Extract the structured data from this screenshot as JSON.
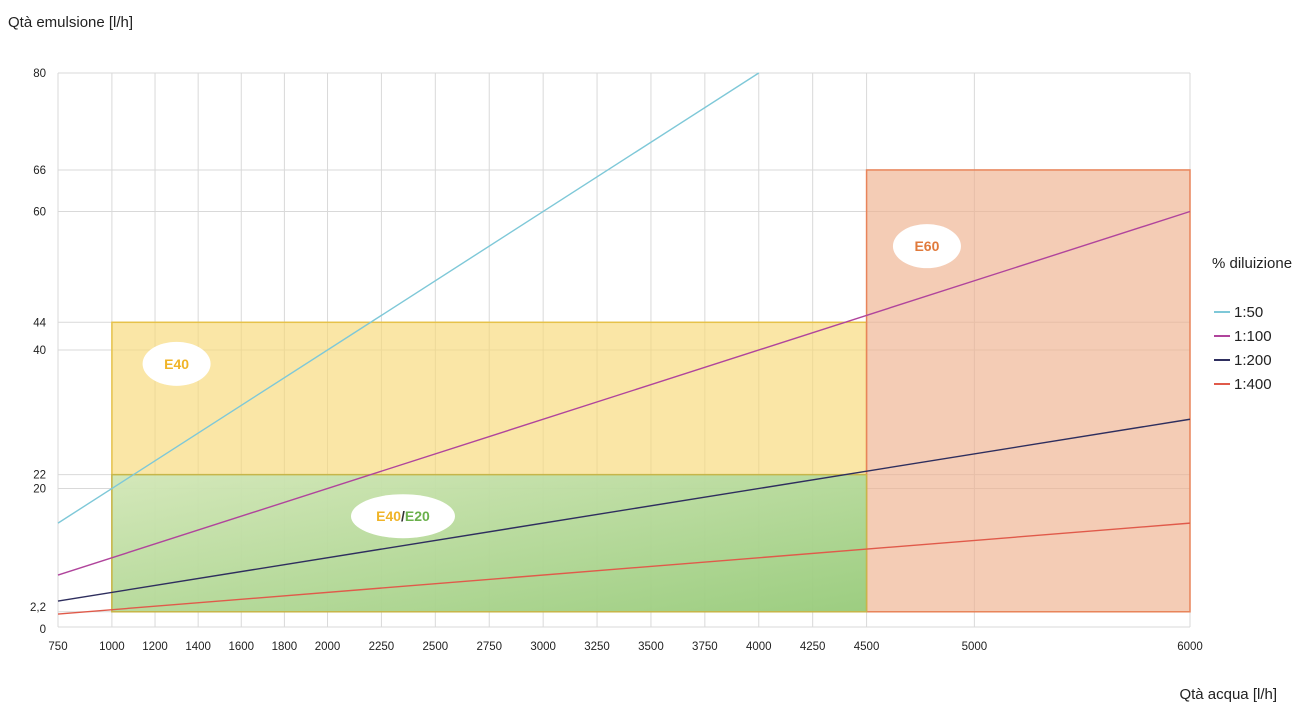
{
  "chart_data": {
    "type": "line",
    "title": "",
    "xlabel": "Qtà acqua [l/h]",
    "ylabel": "Qtà emulsione [l/h]",
    "xlim": [
      750,
      6000
    ],
    "ylim": [
      0,
      80
    ],
    "grid": true,
    "x_ticks": [
      750,
      1000,
      1200,
      1400,
      1600,
      1800,
      2000,
      2250,
      2500,
      2750,
      3000,
      3250,
      3500,
      3750,
      4000,
      4250,
      4500,
      5000,
      6000
    ],
    "y_ticks": [
      {
        "value": 0,
        "label": "0"
      },
      {
        "value": 2.2,
        "label": "2,2"
      },
      {
        "value": 20,
        "label": "20"
      },
      {
        "value": 22,
        "label": "22"
      },
      {
        "value": 40,
        "label": "40"
      },
      {
        "value": 44,
        "label": "44"
      },
      {
        "value": 60,
        "label": "60"
      },
      {
        "value": 66,
        "label": "66"
      },
      {
        "value": 80,
        "label": "80"
      }
    ],
    "legend_title": "% diluizione",
    "legend_position": "right",
    "series": [
      {
        "name": "1:50",
        "color": "#7ec8d8",
        "x": [
          750,
          4000
        ],
        "values": [
          15,
          80
        ]
      },
      {
        "name": "1:100",
        "color": "#b0449c",
        "x": [
          750,
          6000
        ],
        "values": [
          7.5,
          60
        ]
      },
      {
        "name": "1:200",
        "color": "#2e2e5e",
        "x": [
          750,
          6000
        ],
        "values": [
          3.75,
          30
        ]
      },
      {
        "name": "1:400",
        "color": "#e05a4a",
        "x": [
          750,
          6000
        ],
        "values": [
          1.875,
          15
        ]
      }
    ],
    "zones": [
      {
        "label": "E40",
        "label_color": "#f0b428",
        "x": [
          1000,
          4500
        ],
        "y": [
          2.2,
          44
        ],
        "fill": "#f7d977",
        "stroke": "#e6c24a",
        "label_at": [
          1300,
          38
        ]
      },
      {
        "label": "E60",
        "label_color": "#e07a3c",
        "x": [
          4500,
          6000
        ],
        "y": [
          2.2,
          66
        ],
        "fill": "#eeb08e",
        "stroke": "#e8845a",
        "label_at": [
          4780,
          55
        ]
      },
      {
        "label_parts": [
          {
            "text": "E40",
            "color": "#f0b428"
          },
          {
            "text": "/",
            "color": "#333333"
          },
          {
            "text": "E20",
            "color": "#6ab04c"
          }
        ],
        "x": [
          1000,
          4500
        ],
        "y": [
          2.2,
          22
        ],
        "fill": "#a9d99a",
        "stroke": "#c6b64a",
        "label_at": [
          2350,
          16
        ]
      }
    ]
  }
}
